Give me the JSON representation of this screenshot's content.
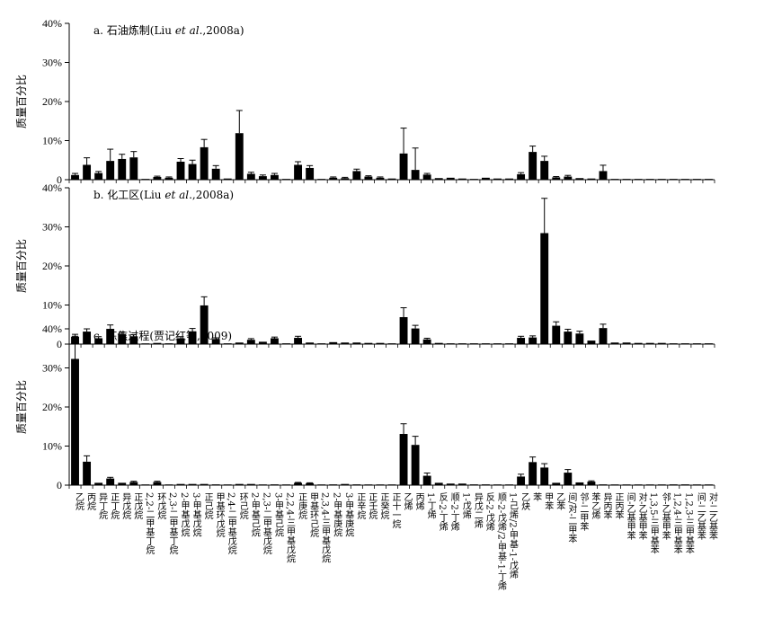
{
  "chart_data": {
    "type": "bar",
    "ylim": [
      0,
      40
    ],
    "yticks": [
      "0",
      "10%",
      "20%",
      "30%",
      "40%"
    ],
    "ylabel": "质量百分比",
    "categories": [
      "乙烷",
      "丙烷",
      "异丁烷",
      "正丁烷",
      "异戊烷",
      "正戊烷",
      "2,2-二甲基丁烷",
      "环戊烷",
      "2,3-二甲基丁烷",
      "2-甲基戊烷",
      "3-甲基戊烷",
      "正己烷",
      "甲基环戊烷",
      "2,4-二甲基戊烷",
      "环己烷",
      "2-甲基己烷",
      "2,3-二甲基戊烷",
      "3-甲基己烷",
      "2,2,4-三甲基戊烷",
      "正庚烷",
      "甲基环己烷",
      "2,3,4-三甲基戊烷",
      "2-甲基庚烷",
      "3-甲基庚烷",
      "正辛烷",
      "正壬烷",
      "正癸烷",
      "正十一烷",
      "乙烯",
      "丙烯",
      "1-丁烯",
      "反-2-丁烯",
      "顺-2-丁烯",
      "1-戊烯",
      "异戊二烯",
      "反-2-戊烯",
      "顺-2-戊烯/2-甲基-1-丁烯",
      "1-己烯/2-甲基-1-戊烯",
      "乙炔",
      "苯",
      "甲苯",
      "乙苯",
      "间/对-二甲苯",
      "邻-二甲苯",
      "苯乙烯",
      "异丙苯",
      "正丙苯",
      "间-乙基甲苯",
      "对-乙基甲苯",
      "1,3,5-三甲基苯",
      "邻-乙基甲苯",
      "1,2,4-三甲基苯",
      "1,2,3-三甲基苯",
      "间-二乙基苯",
      "对-二乙基苯"
    ],
    "panels": [
      {
        "title_prefix": "a. 石油炼制(Liu ",
        "title_italic": "et al",
        "title_suffix": ".,2008a)",
        "values": [
          1.2,
          3.8,
          1.7,
          4.8,
          5.3,
          5.7,
          0.2,
          0.7,
          0.5,
          4.6,
          4.0,
          8.3,
          2.8,
          0.3,
          11.9,
          1.5,
          0.9,
          1.2,
          0.2,
          3.8,
          3.0,
          0.2,
          0.5,
          0.4,
          2.2,
          0.8,
          0.5,
          0.3,
          6.7,
          2.5,
          1.3,
          0.4,
          0.5,
          0.3,
          0.2,
          0.5,
          0.3,
          0.3,
          1.4,
          7.1,
          4.8,
          0.6,
          0.8,
          0.4,
          0.3,
          2.2,
          0.2,
          0.2,
          0.2,
          0.2,
          0.2,
          0.2,
          0.2,
          0.2,
          0.2
        ],
        "errors": [
          0.4,
          1.8,
          0.4,
          3.0,
          1.2,
          1.5,
          0,
          0.2,
          0.2,
          0.8,
          1.0,
          2.0,
          0.8,
          0,
          5.8,
          0.4,
          0.3,
          0.4,
          0,
          0.8,
          0.6,
          0,
          0.2,
          0.2,
          0.5,
          0.2,
          0.2,
          0,
          6.5,
          5.6,
          0.3,
          0,
          0,
          0,
          0,
          0,
          0,
          0,
          0.4,
          1.5,
          1.2,
          0.2,
          0.3,
          0,
          0,
          1.5,
          0,
          0,
          0,
          0,
          0,
          0,
          0,
          0,
          0
        ]
      },
      {
        "title_prefix": "b. 化工区(Liu ",
        "title_italic": "et al",
        "title_suffix": ".,2008a)",
        "values": [
          1.9,
          3.2,
          1.5,
          3.9,
          2.5,
          2.0,
          0.1,
          0.3,
          0.2,
          1.5,
          3.2,
          9.9,
          1.3,
          0.2,
          0.4,
          1.1,
          0.6,
          1.5,
          0.2,
          1.6,
          0.4,
          0.2,
          0.5,
          0.4,
          0.4,
          0.3,
          0.3,
          0.2,
          6.9,
          4.0,
          1.2,
          0.3,
          0.2,
          0.2,
          0.2,
          0.2,
          0.2,
          0.2,
          1.6,
          1.7,
          28.4,
          4.7,
          3.2,
          2.7,
          0.9,
          4.1,
          0.4,
          0.4,
          0.3,
          0.3,
          0.3,
          0.2,
          0.2,
          0.2,
          0.2
        ],
        "errors": [
          0.6,
          0.7,
          0.4,
          1.0,
          0.6,
          0.4,
          0,
          0,
          0,
          0.4,
          0.8,
          2.2,
          0.3,
          0,
          0,
          0.3,
          0,
          0.3,
          0,
          0.4,
          0,
          0,
          0,
          0,
          0,
          0,
          0,
          0,
          2.4,
          0.8,
          0.3,
          0,
          0,
          0,
          0,
          0,
          0,
          0,
          0.4,
          0.4,
          8.9,
          1.0,
          0.6,
          0.6,
          0,
          1.0,
          0,
          0,
          0,
          0,
          0,
          0,
          0,
          0,
          0
        ]
      },
      {
        "title_prefix": "c. 炼焦过程(贾记红等,2009)",
        "title_italic": "",
        "title_suffix": "",
        "values": [
          32.3,
          6.0,
          0.6,
          1.7,
          0.6,
          0.8,
          0.1,
          0.8,
          0.1,
          0.3,
          0.3,
          0.3,
          0.2,
          0.1,
          0.3,
          0.3,
          0.1,
          0.2,
          0.1,
          0.6,
          0.5,
          0.1,
          0.2,
          0.3,
          0.2,
          0.1,
          0.1,
          0.1,
          13.1,
          10.3,
          2.4,
          0.6,
          0.4,
          0.4,
          0.2,
          0.2,
          0.1,
          0.1,
          2.2,
          5.9,
          4.5,
          0.6,
          3.2,
          0.7,
          0.9,
          0.2,
          0.1,
          0.1,
          0.1,
          0.1,
          0.1,
          0.2,
          0.2,
          0.1,
          0.1
        ],
        "errors": [
          5.8,
          1.5,
          0,
          0.3,
          0,
          0.2,
          0,
          0.2,
          0,
          0,
          0,
          0,
          0,
          0,
          0,
          0,
          0,
          0,
          0,
          0.1,
          0.1,
          0,
          0,
          0,
          0,
          0,
          0,
          0,
          2.6,
          2.2,
          0.7,
          0,
          0,
          0,
          0,
          0,
          0,
          0,
          0.6,
          1.3,
          1.0,
          0,
          0.8,
          0,
          0.2,
          0,
          0,
          0,
          0,
          0,
          0,
          0,
          0,
          0,
          0
        ]
      }
    ]
  }
}
